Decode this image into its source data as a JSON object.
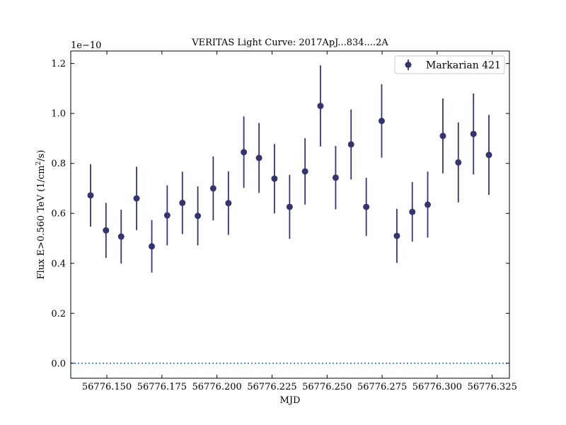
{
  "chart_data": {
    "type": "scatter",
    "title": "VERITAS Light Curve: 2017ApJ...834....2A",
    "xlabel": "MJD",
    "ylabel_prefix": "Flux E>0.560 TeV (1/cm",
    "ylabel_sup": "2",
    "ylabel_suffix": "/s)",
    "y_offset_label": "1e−10",
    "xlim": [
      56776.1336,
      56776.3328
    ],
    "ylim": [
      -0.06,
      1.25
    ],
    "x_ticks": [
      56776.15,
      56776.175,
      56776.2,
      56776.225,
      56776.25,
      56776.275,
      56776.3,
      56776.325
    ],
    "x_tick_labels": [
      "56776.150",
      "56776.175",
      "56776.200",
      "56776.225",
      "56776.250",
      "56776.275",
      "56776.300",
      "56776.325"
    ],
    "y_ticks": [
      0.0,
      0.2,
      0.4,
      0.6,
      0.8,
      1.0,
      1.2
    ],
    "y_tick_labels": [
      "0.0",
      "0.2",
      "0.4",
      "0.6",
      "0.8",
      "1.0",
      "1.2"
    ],
    "reference_line_y": 0.0,
    "legend_position": "top-right",
    "colors": {
      "series": "#34356e",
      "reference_line": "#2a7ab0"
    },
    "series": [
      {
        "name": "Markarian 421",
        "x": [
          56776.1426,
          56776.1496,
          56776.1565,
          56776.1635,
          56776.1704,
          56776.1774,
          56776.1843,
          56776.1913,
          56776.1983,
          56776.2052,
          56776.2122,
          56776.2191,
          56776.2261,
          56776.233,
          56776.24,
          56776.247,
          56776.2539,
          56776.2609,
          56776.2678,
          56776.2748,
          56776.2817,
          56776.2887,
          56776.2957,
          56776.3026,
          56776.3096,
          56776.3165,
          56776.3235
        ],
        "y": [
          0.672,
          0.532,
          0.507,
          0.66,
          0.468,
          0.592,
          0.642,
          0.59,
          0.7,
          0.641,
          0.845,
          0.822,
          0.739,
          0.626,
          0.768,
          1.03,
          0.743,
          0.876,
          0.626,
          0.97,
          0.51,
          0.606,
          0.635,
          0.91,
          0.804,
          0.918,
          0.834
        ],
        "yerr": [
          0.125,
          0.11,
          0.108,
          0.127,
          0.105,
          0.12,
          0.125,
          0.118,
          0.128,
          0.127,
          0.143,
          0.14,
          0.139,
          0.128,
          0.133,
          0.162,
          0.127,
          0.14,
          0.116,
          0.147,
          0.108,
          0.119,
          0.132,
          0.15,
          0.16,
          0.162,
          0.16
        ]
      }
    ]
  }
}
